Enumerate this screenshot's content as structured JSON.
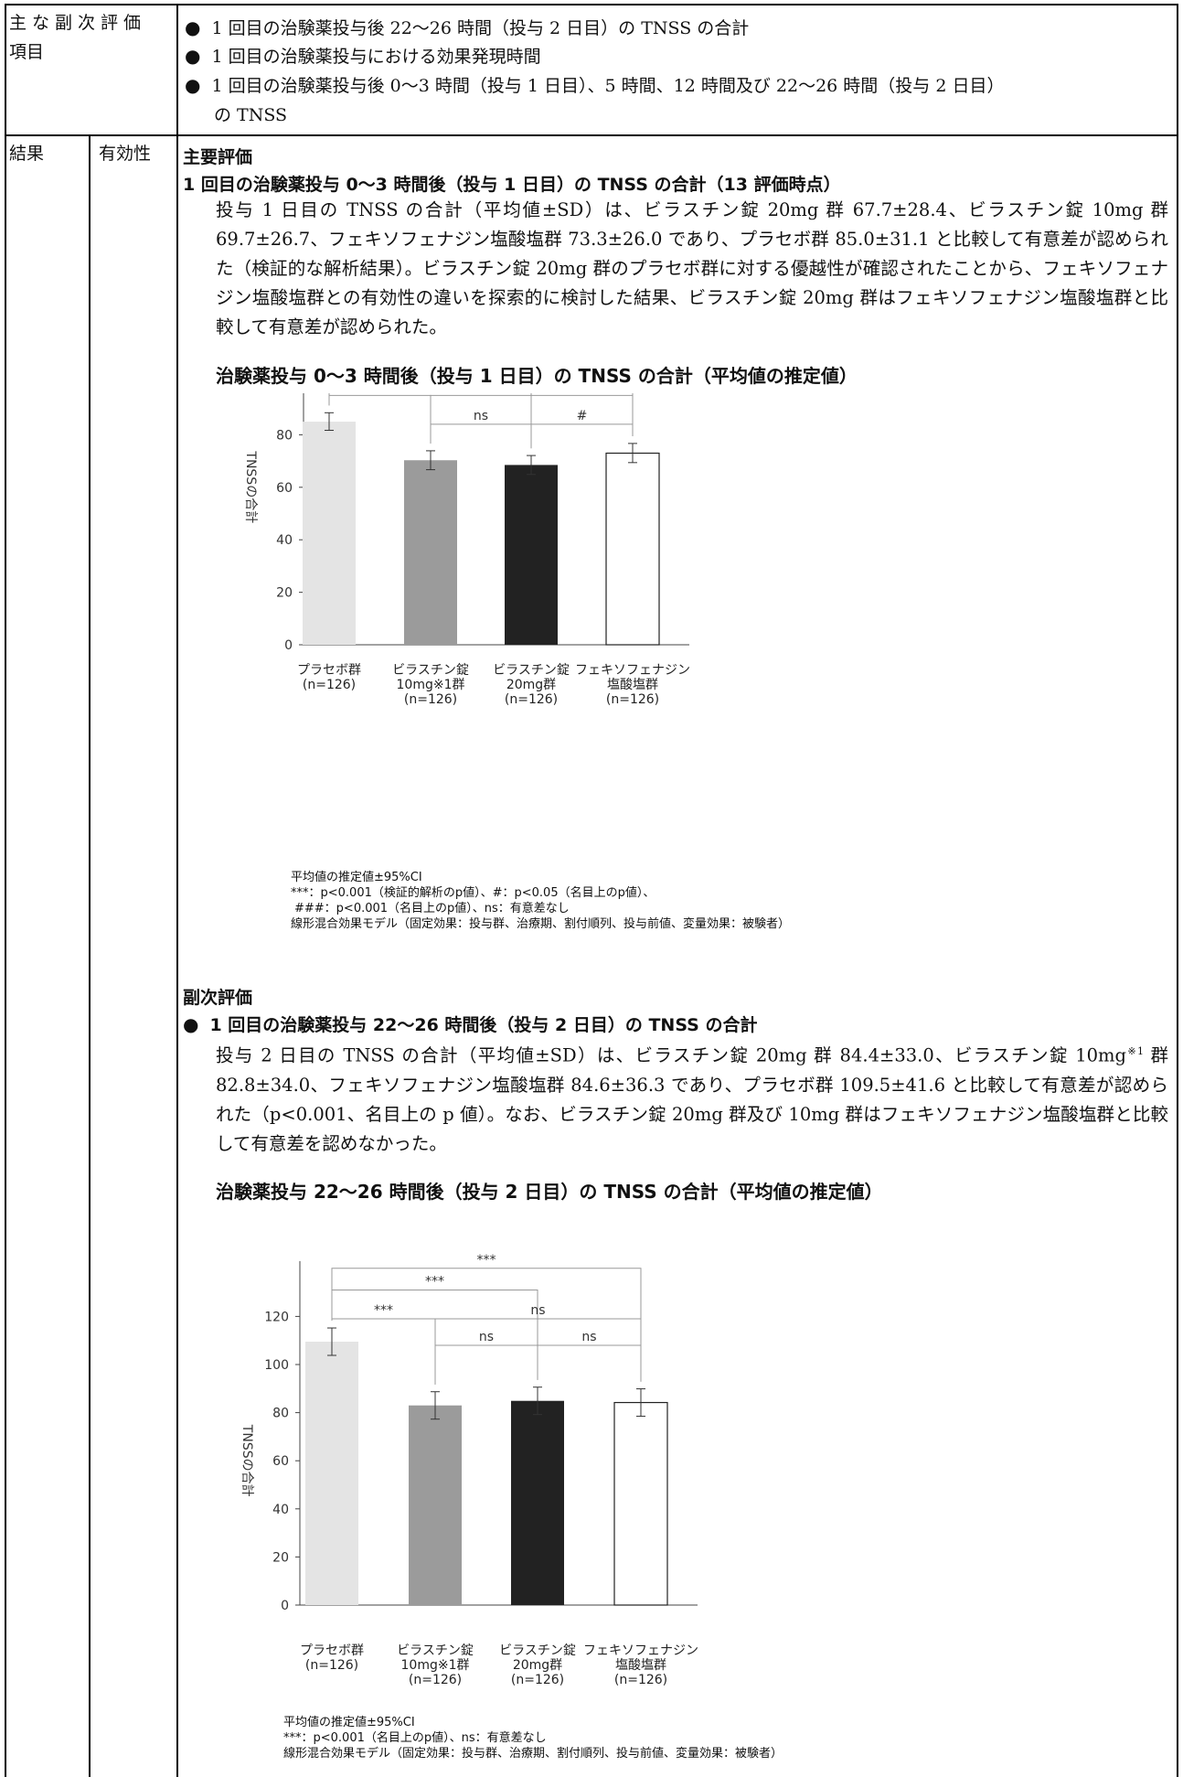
{
  "table": {
    "row1_label": "主な副次評価項目",
    "row1_label_line1": "主な副次評価",
    "row1_label_line2": "項目",
    "row1_items": [
      "1 回目の治験薬投与後 22〜26 時間（投与 2 日目）の TNSS の合計",
      "1 回目の治験薬投与における効果発現時間",
      "1 回目の治験薬投与後 0〜3 時間（投与 1 日目）、5 時間、12 時間及び 22〜26 時間（投与 2 日目）",
      "の TNSS"
    ],
    "row2_label": "結果",
    "row2_sublabel": "有効性"
  },
  "primary": {
    "section_heading": "主要評価",
    "subheading": "1 回目の治験薬投与 0〜3 時間後（投与 1 日目）の TNSS の合計（13 評価時点）",
    "paragraph": "投与 1 日目の TNSS の合計（平均値±SD）は、ビラスチン錠 20mg 群 67.7±28.4、ビラスチン錠 10mg 群 69.7±26.7、フェキソフェナジン塩酸塩群 73.3±26.0 であり、プラセボ群 85.0±31.1 と比較して有意差が認められた（検証的な解析結果）。ビラスチン錠 20mg 群のプラセボ群に対する優越性が確認されたことから、フェキソフェナジン塩酸塩群との有効性の違いを探索的に検討した結果、ビラスチン錠 20mg 群はフェキソフェナジン塩酸塩群と比較して有意差が認められた。",
    "chart_title": "治験薬投与 0〜3 時間後（投与 1 日目）の TNSS の合計（平均値の推定値）",
    "notes": [
      "平均値の推定値±95%CI",
      "***：p<0.001（検証的解析のp値）、#：p<0.05（名目上のp値）、",
      "###：p<0.001（名目上のp値）、ns：有意差なし",
      "線形混合効果モデル（固定効果：投与群、治療期、割付順列、投与前値、変量効果：被験者）"
    ]
  },
  "secondary": {
    "section_heading": "副次評価",
    "subheading": "1 回目の治験薬投与 22〜26 時間後（投与 2 日目）の TNSS の合計",
    "paragraph_a": "投与 2 日目の TNSS の合計（平均値±SD）は、ビラスチン錠 20mg 群 84.4±33.0、ビラスチン錠 10mg",
    "paragraph_sup": "※1",
    "paragraph_b": " 群 82.8±34.0、フェキソフェナジン塩酸塩群 84.6±36.3 であり、プラセボ群 109.5±41.6 と比較して有意差が認められた（p<0.001、名目上の p 値）。なお、ビラスチン錠 20mg 群及び 10mg 群はフェキソフェナジン塩酸塩群と比較して有意差を認めなかった。",
    "chart_title": "治験薬投与 22〜26 時間後（投与 2 日目）の TNSS の合計（平均値の推定値）",
    "notes": [
      "平均値の推定値±95%CI",
      "***：p<0.001（名目上のp値）、ns：有意差なし",
      "線形混合効果モデル（固定効果：投与群、治療期、割付順列、投与前値、変量効果：被験者）"
    ]
  },
  "chart_data": [
    {
      "type": "bar",
      "title": "治験薬投与 0〜3 時間後（投与 1 日目）の TNSS の合計（平均値の推定値）",
      "ylabel": "TNSSの合計",
      "ylim": [
        0,
        120
      ],
      "yticks": [
        0,
        20,
        40,
        60,
        80,
        100,
        120
      ],
      "categories": [
        [
          "プラセボ群",
          "(n=126)"
        ],
        [
          "ビラスチン錠",
          "10mg※1群",
          "(n=126)"
        ],
        [
          "ビラスチン錠",
          "20mg群",
          "(n=126)"
        ],
        [
          "フェキソフェナジン",
          "塩酸塩群",
          "(n=126)"
        ]
      ],
      "values": [
        85.0,
        70.3,
        68.5,
        73.0
      ],
      "ci": [
        [
          81.7,
          88.4
        ],
        [
          66.7,
          73.9
        ],
        [
          64.9,
          72.1
        ],
        [
          69.4,
          76.7
        ]
      ],
      "colors": [
        "#e4e4e4",
        "#9b9b9b",
        "#222222",
        "#ffffff"
      ],
      "comparisons": [
        {
          "from": 0,
          "to": 3,
          "label": "###",
          "level": 118
        },
        {
          "from": 0,
          "to": 2,
          "label": "***",
          "level": 106
        },
        {
          "from": 0,
          "to": 1,
          "label": "###",
          "level": 95
        },
        {
          "from": 1,
          "to": 3,
          "label": "ns",
          "level": 95
        },
        {
          "from": 1,
          "to": 2,
          "label": "ns",
          "level": 84
        },
        {
          "from": 2,
          "to": 3,
          "label": "#",
          "level": 84
        }
      ]
    },
    {
      "type": "bar",
      "title": "治験薬投与 22〜26 時間後（投与 2 日目）の TNSS の合計（平均値の推定値）",
      "ylabel": "TNSSの合計",
      "ylim": [
        0,
        140
      ],
      "yticks": [
        0,
        20,
        40,
        60,
        80,
        100,
        120
      ],
      "categories": [
        [
          "プラセボ群",
          "(n=126)"
        ],
        [
          "ビラスチン錠",
          "10mg※1群",
          "(n=126)"
        ],
        [
          "ビラスチン錠",
          "20mg群",
          "(n=126)"
        ],
        [
          "フェキソフェナジン",
          "塩酸塩群",
          "(n=126)"
        ]
      ],
      "values": [
        109.5,
        83.0,
        84.9,
        84.2
      ],
      "ci": [
        [
          103.8,
          115.2
        ],
        [
          77.3,
          88.7
        ],
        [
          79.2,
          90.6
        ],
        [
          78.5,
          89.9
        ]
      ],
      "colors": [
        "#e4e4e4",
        "#9b9b9b",
        "#222222",
        "#ffffff"
      ],
      "comparisons": [
        {
          "from": 0,
          "to": 3,
          "label": "***",
          "level": 140
        },
        {
          "from": 0,
          "to": 2,
          "label": "***",
          "level": 131
        },
        {
          "from": 0,
          "to": 1,
          "label": "***",
          "level": 119
        },
        {
          "from": 1,
          "to": 3,
          "label": "ns",
          "level": 119
        },
        {
          "from": 1,
          "to": 2,
          "label": "ns",
          "level": 108
        },
        {
          "from": 2,
          "to": 3,
          "label": "ns",
          "level": 108
        }
      ]
    }
  ]
}
